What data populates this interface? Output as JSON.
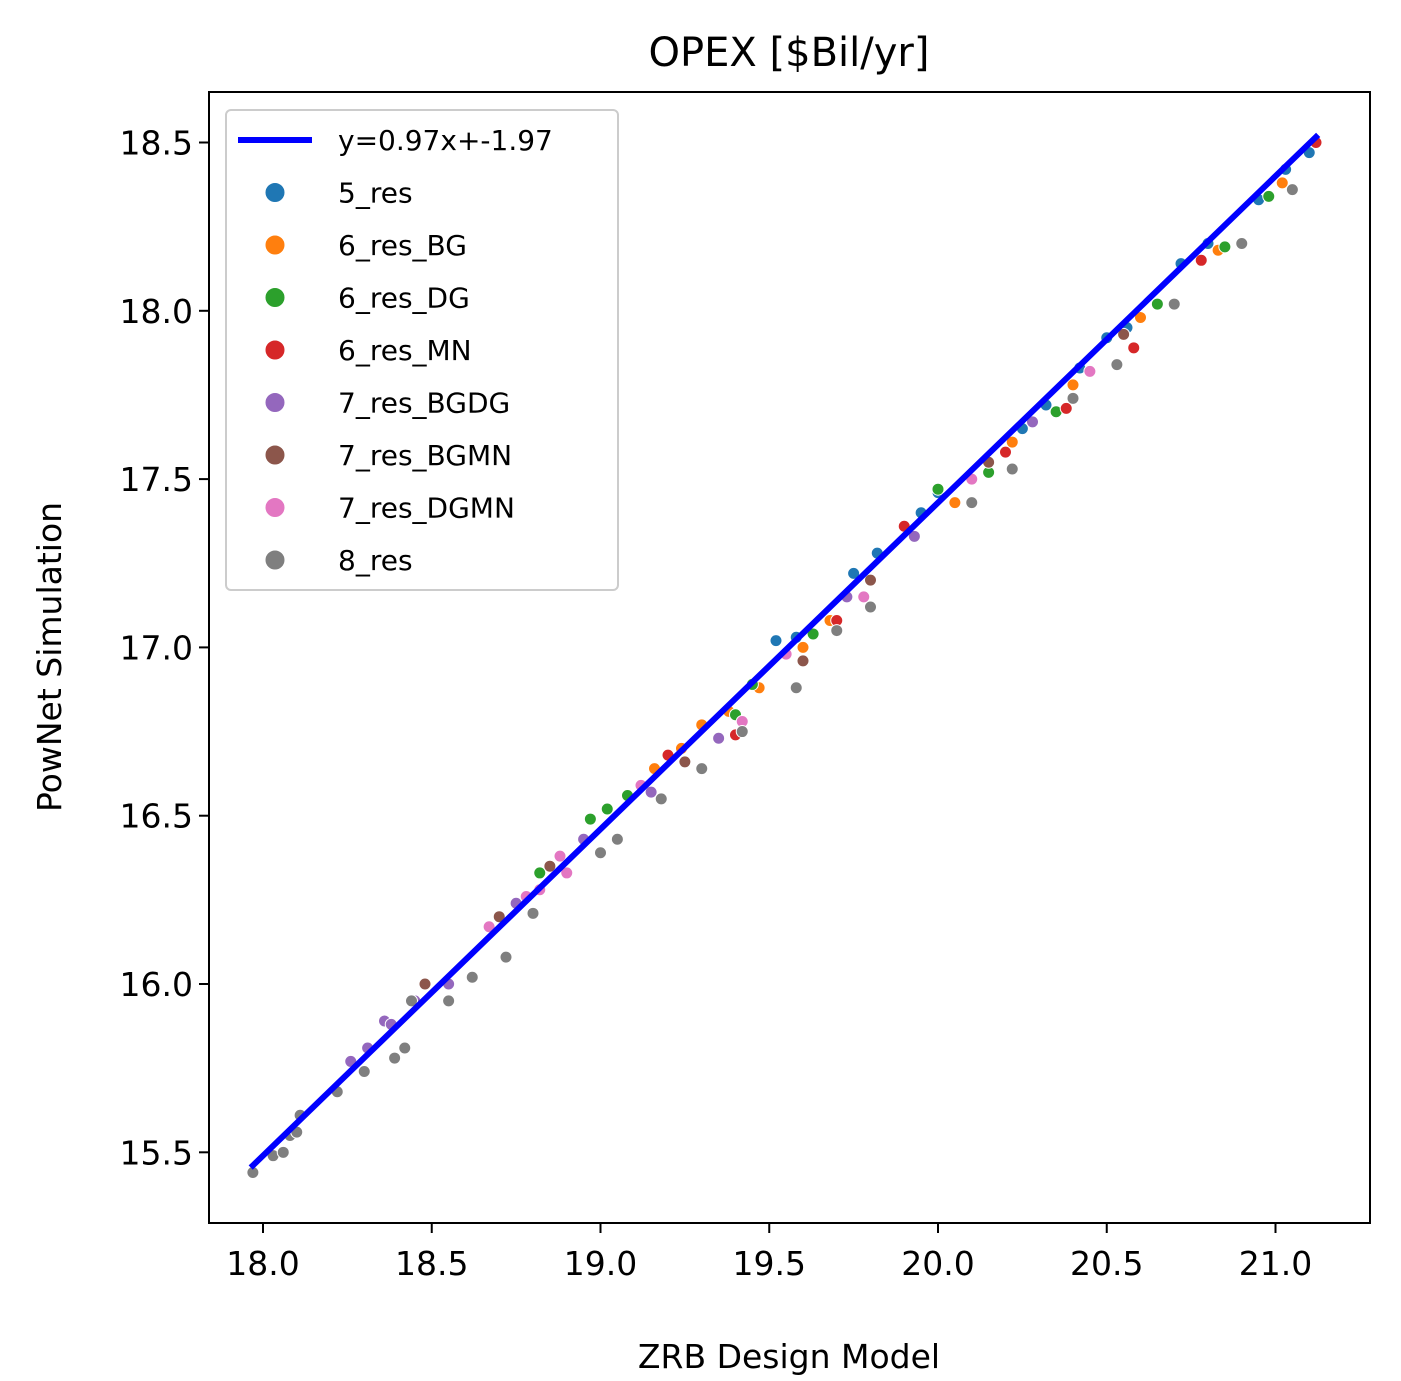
{
  "chart_data": {
    "type": "scatter",
    "title": "OPEX [$Bil/yr]",
    "xlabel": "ZRB Design Model",
    "ylabel": "PowNet Simulation",
    "xlim": [
      17.84,
      21.28
    ],
    "ylim": [
      15.29,
      18.65
    ],
    "x_ticks": [
      "18.0",
      "18.5",
      "19.0",
      "19.5",
      "20.0",
      "20.5",
      "21.0"
    ],
    "y_ticks": [
      "15.5",
      "16.0",
      "16.5",
      "17.0",
      "17.5",
      "18.0",
      "18.5"
    ],
    "grid": false,
    "legend_position": "upper-left",
    "fit_line": {
      "label": "y=0.97x+-1.97",
      "slope": 0.97,
      "intercept": -1.97,
      "x_range": [
        17.97,
        21.12
      ],
      "color": "#0000ff"
    },
    "series": [
      {
        "name": "5_res",
        "color": "#1f77b4",
        "points": [
          [
            19.52,
            17.02
          ],
          [
            19.58,
            17.03
          ],
          [
            19.75,
            17.22
          ],
          [
            19.82,
            17.28
          ],
          [
            19.95,
            17.4
          ],
          [
            20.0,
            17.46
          ],
          [
            20.25,
            17.65
          ],
          [
            20.32,
            17.72
          ],
          [
            20.42,
            17.83
          ],
          [
            20.5,
            17.92
          ],
          [
            20.56,
            17.95
          ],
          [
            20.72,
            18.14
          ],
          [
            20.8,
            18.2
          ],
          [
            20.95,
            18.33
          ],
          [
            21.03,
            18.42
          ],
          [
            21.1,
            18.47
          ]
        ]
      },
      {
        "name": "6_res_BG",
        "color": "#ff7f0e",
        "points": [
          [
            19.16,
            16.64
          ],
          [
            19.24,
            16.7
          ],
          [
            19.3,
            16.77
          ],
          [
            19.38,
            16.81
          ],
          [
            19.47,
            16.88
          ],
          [
            19.6,
            17.0
          ],
          [
            19.68,
            17.08
          ],
          [
            20.05,
            17.43
          ],
          [
            20.22,
            17.61
          ],
          [
            20.4,
            17.78
          ],
          [
            20.6,
            17.98
          ],
          [
            20.83,
            18.18
          ],
          [
            21.02,
            18.38
          ]
        ]
      },
      {
        "name": "6_res_DG",
        "color": "#2ca02c",
        "points": [
          [
            18.82,
            16.33
          ],
          [
            18.97,
            16.49
          ],
          [
            19.02,
            16.52
          ],
          [
            19.08,
            16.56
          ],
          [
            19.4,
            16.8
          ],
          [
            19.45,
            16.89
          ],
          [
            19.63,
            17.04
          ],
          [
            20.0,
            17.47
          ],
          [
            20.15,
            17.52
          ],
          [
            20.35,
            17.7
          ],
          [
            20.65,
            18.02
          ],
          [
            20.85,
            18.19
          ],
          [
            20.98,
            18.34
          ]
        ]
      },
      {
        "name": "6_res_MN",
        "color": "#d62728",
        "points": [
          [
            19.2,
            16.68
          ],
          [
            19.4,
            16.74
          ],
          [
            19.7,
            17.08
          ],
          [
            19.9,
            17.36
          ],
          [
            20.2,
            17.58
          ],
          [
            20.38,
            17.71
          ],
          [
            20.58,
            17.89
          ],
          [
            20.78,
            18.15
          ],
          [
            21.12,
            18.5
          ]
        ]
      },
      {
        "name": "7_res_BGDG",
        "color": "#9467bd",
        "points": [
          [
            18.26,
            15.77
          ],
          [
            18.31,
            15.81
          ],
          [
            18.36,
            15.89
          ],
          [
            18.38,
            15.88
          ],
          [
            18.45,
            15.95
          ],
          [
            18.55,
            16.0
          ],
          [
            18.75,
            16.24
          ],
          [
            18.95,
            16.43
          ],
          [
            19.15,
            16.57
          ],
          [
            19.35,
            16.73
          ],
          [
            19.73,
            17.15
          ],
          [
            19.93,
            17.33
          ],
          [
            20.28,
            17.67
          ]
        ]
      },
      {
        "name": "7_res_BGMN",
        "color": "#8c564b",
        "points": [
          [
            18.48,
            16.0
          ],
          [
            18.7,
            16.2
          ],
          [
            18.85,
            16.35
          ],
          [
            19.25,
            16.66
          ],
          [
            19.6,
            16.96
          ],
          [
            19.8,
            17.2
          ],
          [
            20.15,
            17.55
          ],
          [
            20.55,
            17.93
          ]
        ]
      },
      {
        "name": "7_res_DGMN",
        "color": "#e377c2",
        "points": [
          [
            18.67,
            16.17
          ],
          [
            18.78,
            16.26
          ],
          [
            18.82,
            16.28
          ],
          [
            18.88,
            16.38
          ],
          [
            18.9,
            16.33
          ],
          [
            19.12,
            16.59
          ],
          [
            19.42,
            16.78
          ],
          [
            19.55,
            16.98
          ],
          [
            19.78,
            17.15
          ],
          [
            20.1,
            17.5
          ],
          [
            20.45,
            17.82
          ]
        ]
      },
      {
        "name": "8_res",
        "color": "#7f7f7f",
        "points": [
          [
            17.97,
            15.44
          ],
          [
            18.03,
            15.49
          ],
          [
            18.06,
            15.5
          ],
          [
            18.08,
            15.55
          ],
          [
            18.1,
            15.56
          ],
          [
            18.11,
            15.61
          ],
          [
            18.22,
            15.68
          ],
          [
            18.3,
            15.74
          ],
          [
            18.39,
            15.78
          ],
          [
            18.42,
            15.81
          ],
          [
            18.44,
            15.95
          ],
          [
            18.55,
            15.95
          ],
          [
            18.62,
            16.02
          ],
          [
            18.72,
            16.08
          ],
          [
            18.8,
            16.21
          ],
          [
            19.0,
            16.39
          ],
          [
            19.05,
            16.43
          ],
          [
            19.18,
            16.55
          ],
          [
            19.3,
            16.64
          ],
          [
            19.42,
            16.75
          ],
          [
            19.58,
            16.88
          ],
          [
            19.7,
            17.05
          ],
          [
            19.8,
            17.12
          ],
          [
            20.1,
            17.43
          ],
          [
            20.22,
            17.53
          ],
          [
            20.4,
            17.74
          ],
          [
            20.53,
            17.84
          ],
          [
            20.7,
            18.02
          ],
          [
            20.9,
            18.2
          ],
          [
            21.05,
            18.36
          ]
        ]
      }
    ]
  }
}
